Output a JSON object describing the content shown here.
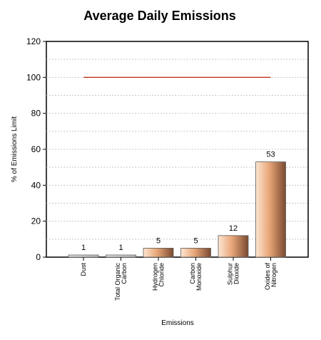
{
  "chart_data": {
    "type": "bar",
    "title": "Average Daily Emissions",
    "xlabel": "Emissions",
    "ylabel": "% of Emissions Limit",
    "ylim": [
      0,
      120
    ],
    "yticks": [
      0,
      20,
      40,
      60,
      80,
      100,
      120
    ],
    "grid": true,
    "categories": [
      [
        "Dust"
      ],
      [
        "Total Organic",
        "Carbon"
      ],
      [
        "Hydrogen",
        "Chloride"
      ],
      [
        "Carbon",
        "Monoxide"
      ],
      [
        "Sulphur",
        "Dioxide"
      ],
      [
        "Oxides of",
        "Nitrogen"
      ]
    ],
    "values": [
      1,
      1,
      5,
      5,
      12,
      53
    ],
    "data_labels": [
      "1",
      "1",
      "5",
      "5",
      "12",
      "53"
    ],
    "limit_line": {
      "value": 100
    },
    "colors": {
      "bar_light": "#fde6d2",
      "bar_mid": "#e8a678",
      "bar_dark": "#7a4a30",
      "small_bar": "#bdbdbd",
      "limit_line": "#c0391c",
      "grid": "#c8c8c8"
    }
  }
}
